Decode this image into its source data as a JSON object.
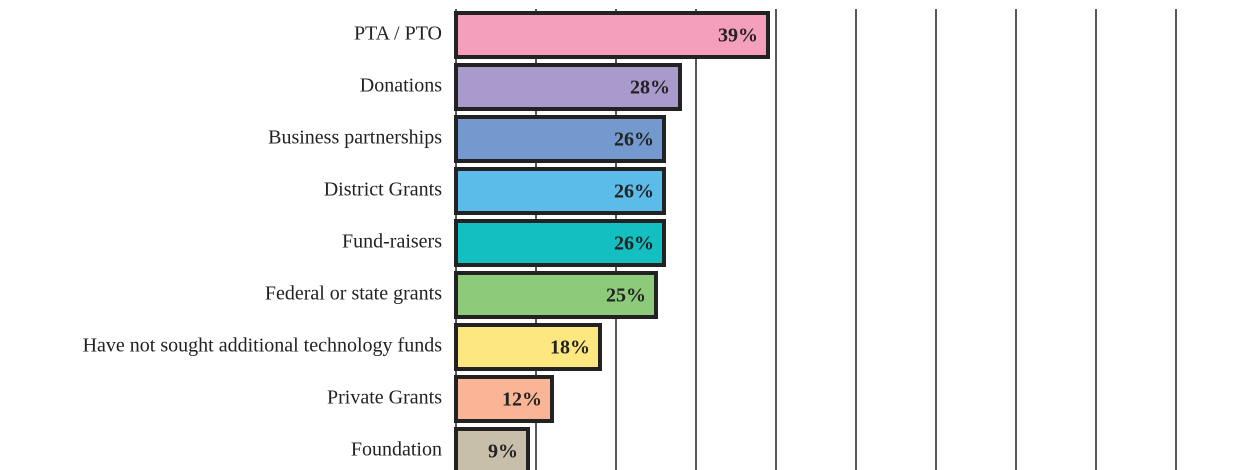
{
  "chart_data": {
    "type": "bar",
    "orientation": "horizontal",
    "categories": [
      "PTA / PTO",
      "Donations",
      "Business partnerships",
      "District Grants",
      "Fund-raisers",
      "Federal or state grants",
      "Have not sought additional technology funds",
      "Private Grants",
      "Foundation"
    ],
    "values": [
      39,
      28,
      26,
      26,
      26,
      25,
      18,
      12,
      9
    ],
    "value_labels": [
      "39%",
      "28%",
      "26%",
      "26%",
      "26%",
      "25%",
      "18%",
      "12%",
      "9%"
    ],
    "colors": [
      "#f4a0bc",
      "#a99acb",
      "#7499cf",
      "#5bbcea",
      "#14bfc2",
      "#8dca7a",
      "#fde780",
      "#f9b595",
      "#c8bfab"
    ],
    "xlim": [
      0,
      90
    ],
    "xticks": [
      0,
      10,
      20,
      30,
      40,
      50,
      60,
      70,
      80,
      90
    ],
    "grid": true
  }
}
